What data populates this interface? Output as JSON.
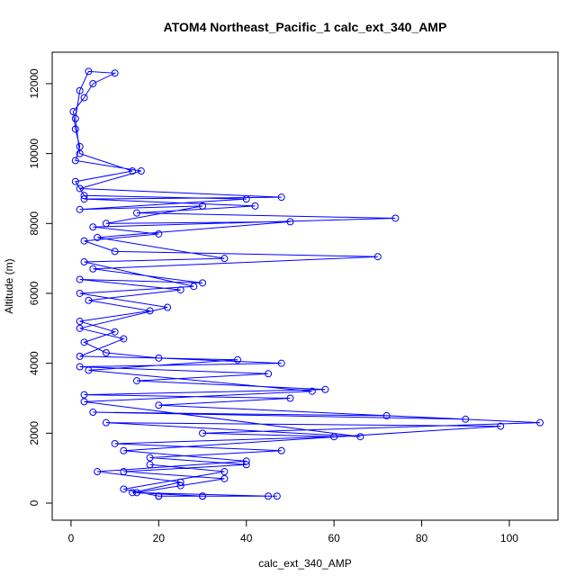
{
  "chart_data": {
    "type": "line",
    "title": "ATOM4 Northeast_Pacific_1 calc_ext_340_AMP",
    "x_label": "calc_ext_340_AMP",
    "y_label": "Altitude (m)",
    "color": "#0000ff",
    "markers": true,
    "x": [
      20,
      30,
      45,
      15,
      25,
      35,
      12,
      40,
      18,
      48,
      10,
      60,
      30,
      107,
      72,
      5,
      90,
      20,
      50,
      3,
      58,
      15,
      45,
      2,
      48,
      20,
      8,
      3,
      10,
      2,
      18,
      4,
      25,
      2,
      30,
      5,
      70,
      10,
      3,
      20,
      5,
      74,
      15,
      42,
      3,
      48,
      2,
      16,
      1,
      2,
      1,
      0.5,
      3,
      5,
      10,
      4,
      2,
      1,
      2,
      14,
      1,
      3,
      40,
      2,
      30,
      8,
      50,
      6,
      35,
      3,
      28,
      2,
      22,
      2,
      12,
      2,
      38,
      4,
      55,
      3,
      66,
      8,
      98,
      12,
      40,
      6,
      25,
      14,
      30,
      47,
      20,
      12,
      35,
      18
    ],
    "values": [
      200,
      200,
      200,
      300,
      500,
      700,
      900,
      1100,
      1300,
      1500,
      1700,
      1900,
      2000,
      2300,
      2500,
      2600,
      2400,
      2800,
      3000,
      3100,
      3250,
      3500,
      3700,
      3900,
      4000,
      4150,
      4300,
      4600,
      4900,
      5200,
      5500,
      5800,
      6100,
      6400,
      6300,
      6700,
      7050,
      7200,
      7500,
      7700,
      7900,
      8150,
      8300,
      8500,
      8700,
      8750,
      9000,
      9500,
      9800,
      10200,
      10700,
      11200,
      11600,
      12000,
      12300,
      12350,
      11800,
      11000,
      10000,
      9500,
      9200,
      8800,
      8700,
      8400,
      8500,
      8000,
      8050,
      7600,
      7000,
      6900,
      6200,
      6000,
      5600,
      5000,
      4700,
      4200,
      4100,
      3800,
      3200,
      2900,
      1900,
      2300,
      2200,
      1500,
      1200,
      900,
      600,
      300,
      200,
      200,
      200,
      400,
      900,
      1100
    ],
    "xlim": [
      -4.3,
      111.1
    ],
    "ylim": [
      -489,
      12900
    ],
    "xticks": [
      0,
      20,
      40,
      60,
      80,
      100
    ],
    "yticks": [
      0,
      2000,
      4000,
      6000,
      8000,
      10000,
      12000
    ]
  }
}
